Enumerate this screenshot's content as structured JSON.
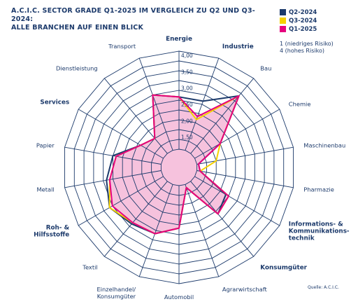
{
  "header": {
    "title_line1": "A.C.I.C. SECTOR GRADE Q1-2025 IM VERGLEICH ZU Q2 UND Q3-2024:",
    "title_line2": "ALLE BRANCHEN AUF EINEN BLICK"
  },
  "scale_note": {
    "line1": "1 (niedriges Risiko)",
    "line2": "4 (hohes Risiko)"
  },
  "source": "Quelle: A.C.I.C.",
  "colors": {
    "grid": "#1c3a6b",
    "q2_2024": "#1c3a6b",
    "q3_2024": "#f5d000",
    "q1_2025": "#e6007e",
    "fill": "#f6c2dd"
  },
  "chart_data": {
    "type": "radar",
    "title": "A.C.I.C. SECTOR GRADE Q1-2025 IM VERGLEICH ZU Q2 UND Q3-2024: ALLE BRANCHEN AUF EINEN BLICK",
    "rmin": 1.0,
    "rmax": 4.0,
    "ticks": [
      "4,00",
      "3,50",
      "3,00",
      "2,50",
      "2,00",
      "1,50"
    ],
    "tick_values": [
      4.0,
      3.5,
      3.0,
      2.5,
      2.0,
      1.5
    ],
    "legend_position": "top-right",
    "categories": [
      {
        "name": "Energie",
        "lines": [
          "Energie"
        ],
        "bold": true
      },
      {
        "name": "Industrie",
        "lines": [
          "Industrie"
        ],
        "bold": true
      },
      {
        "name": "Bau",
        "lines": [
          "Bau"
        ],
        "bold": false
      },
      {
        "name": "Chemie",
        "lines": [
          "Chemie"
        ],
        "bold": false
      },
      {
        "name": "Maschinenbau",
        "lines": [
          "Maschinenbau"
        ],
        "bold": false
      },
      {
        "name": "Pharmazie",
        "lines": [
          "Pharmazie"
        ],
        "bold": false
      },
      {
        "name": "Informations- & Kommunikations-technik",
        "lines": [
          "Informations- &",
          "Kommunikations-",
          "technik"
        ],
        "bold": true
      },
      {
        "name": "Konsumgüter",
        "lines": [
          "Konsumgüter"
        ],
        "bold": true
      },
      {
        "name": "Agrarwirtschaft",
        "lines": [
          "Agrarwirtschaft"
        ],
        "bold": false
      },
      {
        "name": "Automobil",
        "lines": [
          "Automobil"
        ],
        "bold": false
      },
      {
        "name": "Einzelhandel/Konsumgüter",
        "lines": [
          "Einzelhandel/",
          "Konsumgüter"
        ],
        "bold": false
      },
      {
        "name": "Textil",
        "lines": [
          "Textil"
        ],
        "bold": false
      },
      {
        "name": "Roh- & Hilfsstoffe",
        "lines": [
          "Roh- &",
          "Hilfsstoffe"
        ],
        "bold": true
      },
      {
        "name": "Metall",
        "lines": [
          "Metall"
        ],
        "bold": false
      },
      {
        "name": "Papier",
        "lines": [
          "Papier"
        ],
        "bold": false
      },
      {
        "name": "Services",
        "lines": [
          "Services"
        ],
        "bold": true
      },
      {
        "name": "Dienstleistung",
        "lines": [
          "Dienstleistung"
        ],
        "bold": false
      },
      {
        "name": "Transport",
        "lines": [
          "Transport"
        ],
        "bold": false
      }
    ],
    "series": [
      {
        "name": "Q2-2024",
        "values": [
          2.6,
          2.6,
          3.3,
          1.9,
          1.05,
          1.1,
          2.1,
          2.3,
          1.1,
          2.3,
          2.6,
          2.7,
          2.9,
          2.7,
          2.5,
          1.8,
          1.6,
          2.8
        ]
      },
      {
        "name": "Q3-2024",
        "values": [
          2.6,
          2.0,
          3.3,
          1.9,
          1.6,
          1.1,
          2.2,
          2.3,
          1.1,
          2.3,
          2.6,
          2.65,
          2.9,
          2.6,
          2.4,
          1.8,
          1.6,
          2.8
        ]
      },
      {
        "name": "Q1-2025",
        "values": [
          2.6,
          2.1,
          3.3,
          1.9,
          1.05,
          1.1,
          2.2,
          2.3,
          1.1,
          2.3,
          2.6,
          2.65,
          2.8,
          2.6,
          2.4,
          1.8,
          1.6,
          2.8
        ]
      }
    ]
  }
}
